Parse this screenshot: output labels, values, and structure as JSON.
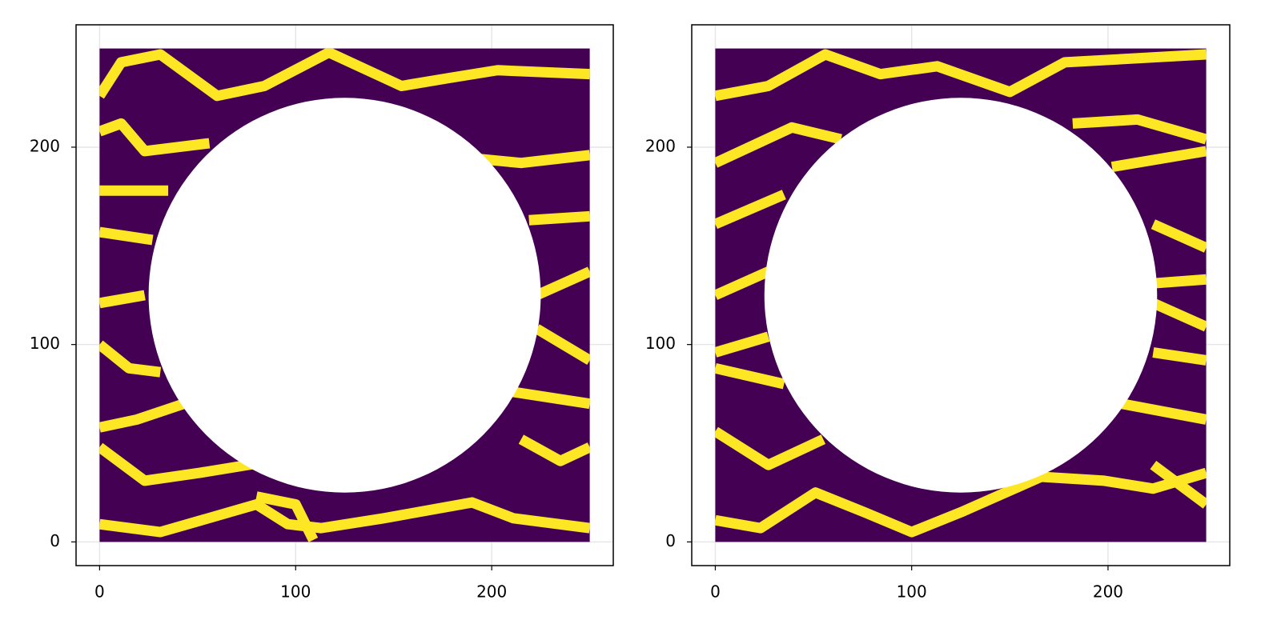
{
  "chart_data": [
    {
      "type": "heatmap",
      "color": "#440154",
      "streak_color": "#fde725",
      "grid": true,
      "xrange": [
        0,
        250
      ],
      "yrange": [
        0,
        250
      ],
      "xlim": [
        -12,
        262
      ],
      "ylim": [
        -12,
        262
      ],
      "xticks": [
        0,
        100,
        200
      ],
      "yticks": [
        0,
        100,
        200
      ],
      "mask": {
        "center": [
          125,
          125
        ],
        "radius": 100
      },
      "series": [
        {
          "x": [
            0,
            31,
            80,
            96,
            113,
            145,
            190,
            211,
            250
          ],
          "y": [
            9,
            5,
            19,
            9,
            7,
            12,
            20,
            12,
            7
          ]
        },
        {
          "x": [
            0,
            23,
            51,
            88
          ],
          "y": [
            48,
            31,
            35,
            41
          ]
        },
        {
          "x": [
            0,
            19,
            43
          ],
          "y": [
            58,
            62,
            70
          ]
        },
        {
          "x": [
            0,
            15,
            31
          ],
          "y": [
            100,
            88,
            86
          ]
        },
        {
          "x": [
            0,
            23
          ],
          "y": [
            121,
            125
          ]
        },
        {
          "x": [
            0,
            27
          ],
          "y": [
            157,
            153
          ]
        },
        {
          "x": [
            0,
            35
          ],
          "y": [
            178,
            178
          ]
        },
        {
          "x": [
            0,
            11,
            31,
            60,
            84,
            117,
            154,
            178,
            203,
            250
          ],
          "y": [
            226,
            243,
            247,
            226,
            231,
            248,
            231,
            235,
            239,
            237
          ]
        },
        {
          "x": [
            0,
            11,
            23,
            56
          ],
          "y": [
            208,
            212,
            198,
            202
          ]
        },
        {
          "x": [
            194,
            215,
            250
          ],
          "y": [
            194,
            192,
            196
          ]
        },
        {
          "x": [
            219,
            250
          ],
          "y": [
            163,
            165
          ]
        },
        {
          "x": [
            223,
            250
          ],
          "y": [
            125,
            137
          ]
        },
        {
          "x": [
            223,
            250
          ],
          "y": [
            108,
            92
          ]
        },
        {
          "x": [
            211,
            250
          ],
          "y": [
            76,
            70
          ]
        },
        {
          "x": [
            215,
            235,
            250
          ],
          "y": [
            52,
            41,
            48
          ]
        },
        {
          "x": [
            80,
            100,
            109
          ],
          "y": [
            23,
            19,
            1
          ]
        }
      ]
    },
    {
      "type": "heatmap",
      "color": "#440154",
      "streak_color": "#fde725",
      "grid": true,
      "xrange": [
        0,
        250
      ],
      "yrange": [
        0,
        250
      ],
      "xlim": [
        -12,
        262
      ],
      "ylim": [
        -12,
        262
      ],
      "xticks": [
        0,
        100,
        200
      ],
      "yticks": [
        0,
        100,
        200
      ],
      "mask": {
        "center": [
          125,
          125
        ],
        "radius": 100
      },
      "series": [
        {
          "x": [
            0,
            23,
            51,
            76,
            100,
            125,
            166,
            198,
            223,
            250
          ],
          "y": [
            11,
            7,
            25,
            15,
            5,
            15,
            33,
            31,
            27,
            35
          ]
        },
        {
          "x": [
            0,
            27,
            55
          ],
          "y": [
            56,
            39,
            52
          ]
        },
        {
          "x": [
            0,
            35
          ],
          "y": [
            88,
            80
          ]
        },
        {
          "x": [
            0,
            27
          ],
          "y": [
            96,
            104
          ]
        },
        {
          "x": [
            0,
            27
          ],
          "y": [
            125,
            137
          ]
        },
        {
          "x": [
            0,
            35
          ],
          "y": [
            161,
            176
          ]
        },
        {
          "x": [
            0,
            39,
            64
          ],
          "y": [
            192,
            210,
            204
          ]
        },
        {
          "x": [
            0,
            27,
            56,
            84,
            113,
            150,
            178,
            250
          ],
          "y": [
            226,
            231,
            247,
            237,
            241,
            228,
            243,
            247
          ]
        },
        {
          "x": [
            182,
            215,
            250
          ],
          "y": [
            212,
            214,
            204
          ]
        },
        {
          "x": [
            202,
            250
          ],
          "y": [
            190,
            198
          ]
        },
        {
          "x": [
            223,
            250
          ],
          "y": [
            161,
            149
          ]
        },
        {
          "x": [
            223,
            250
          ],
          "y": [
            131,
            133
          ]
        },
        {
          "x": [
            223,
            250
          ],
          "y": [
            121,
            109
          ]
        },
        {
          "x": [
            223,
            250
          ],
          "y": [
            96,
            92
          ]
        },
        {
          "x": [
            207,
            250
          ],
          "y": [
            70,
            62
          ]
        },
        {
          "x": [
            223,
            250
          ],
          "y": [
            39,
            19
          ]
        }
      ]
    }
  ]
}
